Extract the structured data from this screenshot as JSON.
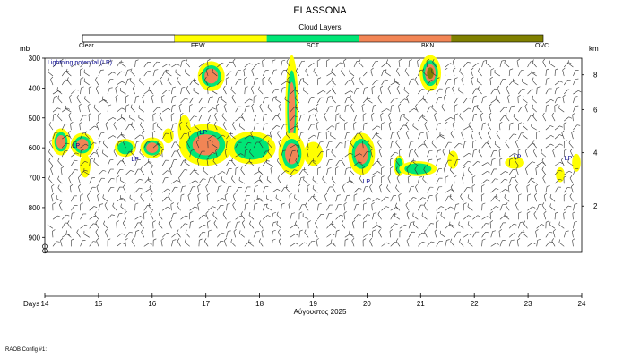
{
  "chart_data": {
    "type": "heatmap",
    "title": "ELASSONA",
    "legend": {
      "title": "Cloud Layers",
      "levels": [
        {
          "label": "Clear",
          "color": "#ffffff"
        },
        {
          "label": "FEW",
          "color": "#ffff00"
        },
        {
          "label": "SCT",
          "color": "#00e676"
        },
        {
          "label": "BKN",
          "color": "#f28555"
        },
        {
          "label": "OVC",
          "color": "#808000"
        }
      ]
    },
    "lp_legend": "Lightning potential (LP)",
    "lp_marker": "LP",
    "y_left_unit": "mb",
    "y_left_ticks": [
      300,
      400,
      500,
      600,
      700,
      800,
      900
    ],
    "y_right_unit": "km",
    "y_right_ticks": [
      2,
      4,
      6,
      8
    ],
    "ylim": [
      950,
      300
    ],
    "x_title": "Days",
    "x_ticks": [
      14,
      15,
      16,
      17,
      18,
      19,
      20,
      21,
      22,
      23,
      24
    ],
    "xlim": [
      14,
      24
    ],
    "month_label": "Αύγουστος 2025",
    "lp_points": [
      {
        "day": 14.58,
        "p": 590
      },
      {
        "day": 15.68,
        "p": 635
      },
      {
        "day": 16.95,
        "p": 545
      },
      {
        "day": 19.99,
        "p": 710
      },
      {
        "day": 22.8,
        "p": 628
      },
      {
        "day": 23.75,
        "p": 632
      }
    ],
    "cloud_patches": [
      {
        "day": 14.3,
        "p": 580,
        "rd": 0.17,
        "rp": 45,
        "level": 3
      },
      {
        "day": 14.7,
        "p": 590,
        "rd": 0.22,
        "rp": 40,
        "level": 3
      },
      {
        "day": 14.75,
        "p": 660,
        "rd": 0.1,
        "rp": 40,
        "level": 1
      },
      {
        "day": 15.5,
        "p": 600,
        "rd": 0.2,
        "rp": 30,
        "level": 2
      },
      {
        "day": 16.0,
        "p": 600,
        "rd": 0.22,
        "rp": 35,
        "level": 3
      },
      {
        "day": 16.3,
        "p": 560,
        "rd": 0.1,
        "rp": 25,
        "level": 1
      },
      {
        "day": 16.6,
        "p": 540,
        "rd": 0.12,
        "rp": 50,
        "level": 1
      },
      {
        "day": 17.0,
        "p": 590,
        "rd": 0.5,
        "rp": 70,
        "level": 3
      },
      {
        "day": 17.1,
        "p": 360,
        "rd": 0.25,
        "rp": 50,
        "level": 3
      },
      {
        "day": 17.85,
        "p": 600,
        "rd": 0.45,
        "rp": 55,
        "level": 2
      },
      {
        "day": 18.6,
        "p": 470,
        "rd": 0.12,
        "rp": 180,
        "level": 3
      },
      {
        "day": 18.6,
        "p": 620,
        "rd": 0.25,
        "rp": 70,
        "level": 3
      },
      {
        "day": 19.0,
        "p": 620,
        "rd": 0.18,
        "rp": 40,
        "level": 1
      },
      {
        "day": 19.9,
        "p": 620,
        "rd": 0.25,
        "rp": 70,
        "level": 3
      },
      {
        "day": 20.6,
        "p": 660,
        "rd": 0.1,
        "rp": 35,
        "level": 2
      },
      {
        "day": 20.95,
        "p": 670,
        "rd": 0.35,
        "rp": 25,
        "level": 2
      },
      {
        "day": 21.18,
        "p": 350,
        "rd": 0.2,
        "rp": 60,
        "level": 4
      },
      {
        "day": 21.6,
        "p": 640,
        "rd": 0.1,
        "rp": 30,
        "level": 1
      },
      {
        "day": 22.75,
        "p": 650,
        "rd": 0.18,
        "rp": 20,
        "level": 1
      },
      {
        "day": 23.6,
        "p": 690,
        "rd": 0.08,
        "rp": 25,
        "level": 1
      },
      {
        "day": 23.9,
        "p": 650,
        "rd": 0.08,
        "rp": 30,
        "level": 1
      }
    ]
  },
  "footer": {
    "config": "RAOB Config #1:"
  }
}
